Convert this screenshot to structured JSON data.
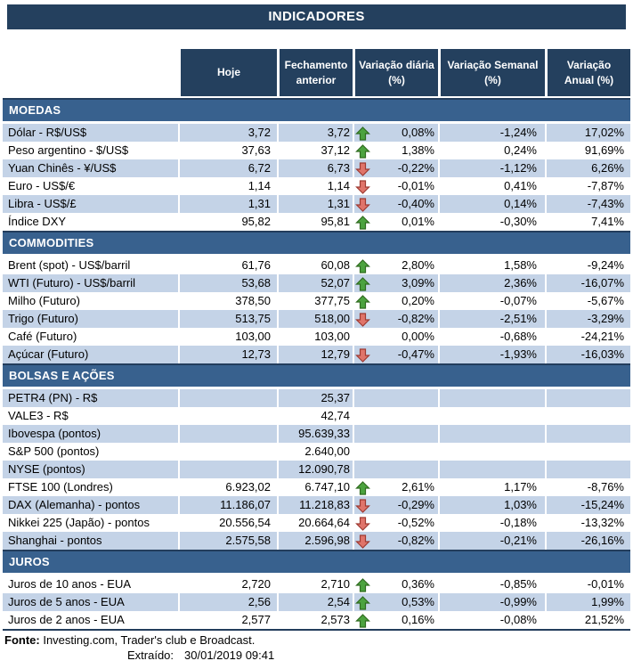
{
  "title": "INDICADORES",
  "columns": [
    "Hoje",
    "Fechamento\nanterior",
    "Variação diária\n(%)",
    "Variação Semanal\n(%)",
    "Variação\nAnual (%)"
  ],
  "sections": [
    {
      "name": "MOEDAS",
      "rows": [
        {
          "label": "Dólar - R$/US$",
          "hoje": "3,72",
          "fechamento": "3,72",
          "arrow": "up",
          "diaria": "0,08%",
          "semanal": "-1,24%",
          "anual": "17,02%"
        },
        {
          "label": "Peso argentino - $/US$",
          "hoje": "37,63",
          "fechamento": "37,12",
          "arrow": "up",
          "diaria": "1,38%",
          "semanal": "0,24%",
          "anual": "91,69%"
        },
        {
          "label": "Yuan Chinês - ¥/US$",
          "hoje": "6,72",
          "fechamento": "6,73",
          "arrow": "down",
          "diaria": "-0,22%",
          "semanal": "-1,12%",
          "anual": "6,26%"
        },
        {
          "label": "Euro - US$/€",
          "hoje": "1,14",
          "fechamento": "1,14",
          "arrow": "down",
          "diaria": "-0,01%",
          "semanal": "0,41%",
          "anual": "-7,87%"
        },
        {
          "label": "Libra - US$/£",
          "hoje": "1,31",
          "fechamento": "1,31",
          "arrow": "down",
          "diaria": "-0,40%",
          "semanal": "0,14%",
          "anual": "-7,43%"
        },
        {
          "label": "Índice DXY",
          "hoje": "95,82",
          "fechamento": "95,81",
          "arrow": "up",
          "diaria": "0,01%",
          "semanal": "-0,30%",
          "anual": "7,41%"
        }
      ]
    },
    {
      "name": "COMMODITIES",
      "rows": [
        {
          "label": "Brent (spot) - US$/barril",
          "hoje": "61,76",
          "fechamento": "60,08",
          "arrow": "up",
          "diaria": "2,80%",
          "semanal": "1,58%",
          "anual": "-9,24%"
        },
        {
          "label": "WTI (Futuro) - US$/barril",
          "hoje": "53,68",
          "fechamento": "52,07",
          "arrow": "up",
          "diaria": "3,09%",
          "semanal": "2,36%",
          "anual": "-16,07%"
        },
        {
          "label": "Milho (Futuro)",
          "hoje": "378,50",
          "fechamento": "377,75",
          "arrow": "up",
          "diaria": "0,20%",
          "semanal": "-0,07%",
          "anual": "-5,67%"
        },
        {
          "label": "Trigo (Futuro)",
          "hoje": "513,75",
          "fechamento": "518,00",
          "arrow": "down",
          "diaria": "-0,82%",
          "semanal": "-2,51%",
          "anual": "-3,29%"
        },
        {
          "label": "Café (Futuro)",
          "hoje": "103,00",
          "fechamento": "103,00",
          "arrow": "none",
          "diaria": "0,00%",
          "semanal": "-0,68%",
          "anual": "-24,21%"
        },
        {
          "label": "Açúcar (Futuro)",
          "hoje": "12,73",
          "fechamento": "12,79",
          "arrow": "down",
          "diaria": "-0,47%",
          "semanal": "-1,93%",
          "anual": "-16,03%"
        }
      ]
    },
    {
      "name": "BOLSAS E AÇÕES",
      "rows": [
        {
          "label": "PETR4 (PN) - R$",
          "hoje": "",
          "fechamento": "25,37",
          "arrow": "none",
          "diaria": "",
          "semanal": "",
          "anual": ""
        },
        {
          "label": "VALE3 - R$",
          "hoje": "",
          "fechamento": "42,74",
          "arrow": "none",
          "diaria": "",
          "semanal": "",
          "anual": ""
        },
        {
          "label": "Ibovespa (pontos)",
          "hoje": "",
          "fechamento": "95.639,33",
          "arrow": "none",
          "diaria": "",
          "semanal": "",
          "anual": ""
        },
        {
          "label": "S&P 500 (pontos)",
          "hoje": "",
          "fechamento": "2.640,00",
          "arrow": "none",
          "diaria": "",
          "semanal": "",
          "anual": ""
        },
        {
          "label": "NYSE (pontos)",
          "hoje": "",
          "fechamento": "12.090,78",
          "arrow": "none",
          "diaria": "",
          "semanal": "",
          "anual": ""
        },
        {
          "label": "FTSE 100 (Londres)",
          "hoje": "6.923,02",
          "fechamento": "6.747,10",
          "arrow": "up",
          "diaria": "2,61%",
          "semanal": "1,17%",
          "anual": "-8,76%"
        },
        {
          "label": "DAX (Alemanha) - pontos",
          "hoje": "11.186,07",
          "fechamento": "11.218,83",
          "arrow": "down",
          "diaria": "-0,29%",
          "semanal": "1,03%",
          "anual": "-15,24%"
        },
        {
          "label": "Nikkei 225 (Japão) - pontos",
          "hoje": "20.556,54",
          "fechamento": "20.664,64",
          "arrow": "down",
          "diaria": "-0,52%",
          "semanal": "-0,18%",
          "anual": "-13,32%"
        },
        {
          "label": "Shanghai - pontos",
          "hoje": "2.575,58",
          "fechamento": "2.596,98",
          "arrow": "down",
          "diaria": "-0,82%",
          "semanal": "-0,21%",
          "anual": "-26,16%"
        }
      ]
    },
    {
      "name": "JUROS",
      "rows": [
        {
          "label": "Juros de 10 anos - EUA",
          "hoje": "2,720",
          "fechamento": "2,710",
          "arrow": "up",
          "diaria": "0,36%",
          "semanal": "-0,85%",
          "anual": "-0,01%"
        },
        {
          "label": "Juros de 5 anos - EUA",
          "hoje": "2,56",
          "fechamento": "2,54",
          "arrow": "up",
          "diaria": "0,53%",
          "semanal": "-0,99%",
          "anual": "1,99%"
        },
        {
          "label": "Juros de 2 anos - EUA",
          "hoje": "2,577",
          "fechamento": "2,573",
          "arrow": "up",
          "diaria": "0,16%",
          "semanal": "-0,08%",
          "anual": "21,52%"
        }
      ]
    }
  ],
  "footer": {
    "fonte_label": "Fonte:",
    "fonte_text": "Investing.com, Trader's club e Broadcast.",
    "extraido_label": "Extraído:",
    "extraido_value": "30/01/2019 09:41"
  },
  "icons": {
    "up": "up-arrow-icon",
    "down": "down-arrow-icon"
  },
  "colors": {
    "header_bg": "#24405E",
    "section_bg": "#38618E",
    "row_alt_bg": "#C4D3E7",
    "up_arrow_fill": "#4CA33F",
    "up_arrow_border": "#2F6B1F",
    "down_arrow_fill": "#E0746A",
    "down_arrow_border": "#9E3A32"
  }
}
